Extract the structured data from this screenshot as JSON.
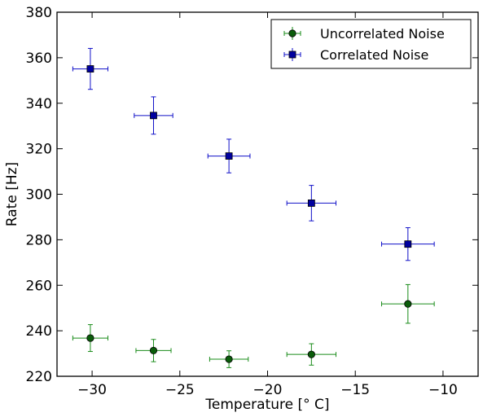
{
  "chart_data": {
    "type": "scatter",
    "title": "",
    "xlabel": "Temperature [° C]",
    "ylabel": "Rate [Hz]",
    "xlim": [
      -32,
      -8
    ],
    "ylim": [
      220,
      380
    ],
    "xticks": [
      -30,
      -25,
      -20,
      -15,
      -10
    ],
    "xtick_labels": [
      "−30",
      "−25",
      "−20",
      "−15",
      "−10"
    ],
    "yticks": [
      220,
      240,
      260,
      280,
      300,
      320,
      340,
      360,
      380
    ],
    "ytick_labels": [
      "220",
      "240",
      "260",
      "280",
      "300",
      "320",
      "340",
      "360",
      "380"
    ],
    "grid": false,
    "legend_position": "top-right",
    "series": [
      {
        "name": "Uncorrelated Noise",
        "marker": "circle",
        "color": "#1a8c1a",
        "fill": "#0a5c0a",
        "points": [
          {
            "x": -30.1,
            "y": 236.8,
            "xerr": 1.0,
            "yerr": 5.9
          },
          {
            "x": -26.5,
            "y": 231.3,
            "xerr": 1.0,
            "yerr": 4.9
          },
          {
            "x": -22.2,
            "y": 227.5,
            "xerr": 1.1,
            "yerr": 3.7
          },
          {
            "x": -17.5,
            "y": 229.6,
            "xerr": 1.4,
            "yerr": 4.7
          },
          {
            "x": -12.0,
            "y": 251.8,
            "xerr": 1.5,
            "yerr": 8.5
          }
        ]
      },
      {
        "name": "Correlated Noise",
        "marker": "square",
        "color": "#1010c8",
        "fill": "#0000a0",
        "points": [
          {
            "x": -30.1,
            "y": 355.1,
            "xerr": 1.0,
            "yerr": 9.0
          },
          {
            "x": -26.5,
            "y": 334.6,
            "xerr": 1.1,
            "yerr": 8.2
          },
          {
            "x": -22.2,
            "y": 316.8,
            "xerr": 1.2,
            "yerr": 7.4
          },
          {
            "x": -17.5,
            "y": 296.1,
            "xerr": 1.4,
            "yerr": 7.8
          },
          {
            "x": -12.0,
            "y": 278.1,
            "xerr": 1.5,
            "yerr": 7.2
          }
        ]
      }
    ]
  }
}
